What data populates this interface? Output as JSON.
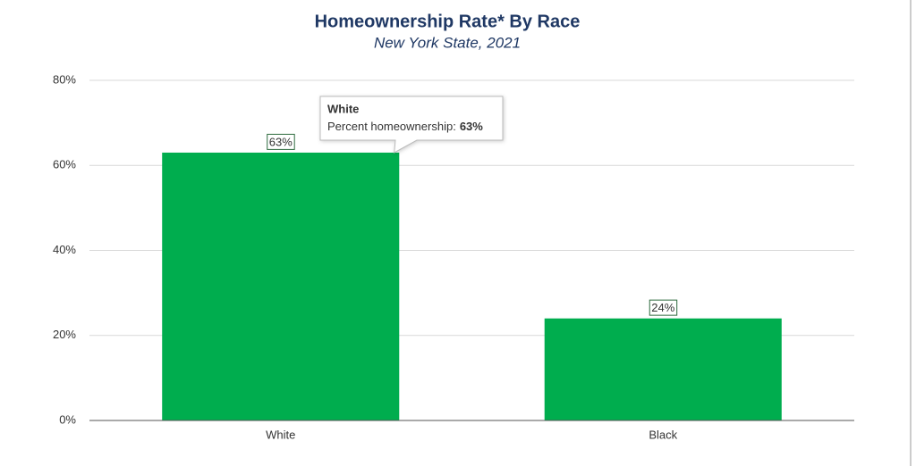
{
  "chart_data": {
    "type": "bar",
    "title": "Homeownership Rate* By Race",
    "subtitle": "New York State, 2021",
    "categories": [
      "White",
      "Black"
    ],
    "values": [
      63,
      24
    ],
    "value_labels": [
      "63%",
      "24%"
    ],
    "color": "#00ad4e",
    "ylim": [
      0,
      80
    ],
    "yticks": [
      {
        "value": 0,
        "label": "0%"
      },
      {
        "value": 20,
        "label": "20%"
      },
      {
        "value": 40,
        "label": "40%"
      },
      {
        "value": 60,
        "label": "60%"
      },
      {
        "value": 80,
        "label": "80%"
      }
    ],
    "grid": true,
    "tooltip": {
      "category": "White",
      "label": "Percent homeownership:",
      "value_label": "63%"
    }
  }
}
